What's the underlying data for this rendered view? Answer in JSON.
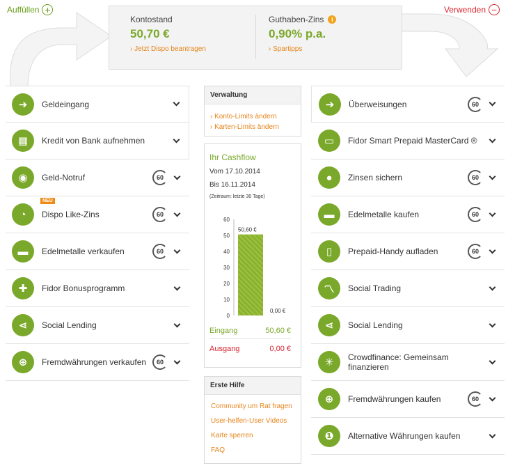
{
  "header": {
    "add_label": "Auffüllen",
    "use_label": "Verwenden"
  },
  "summary": {
    "balance_label": "Kontostand",
    "balance_value": "50,70 €",
    "balance_link": "› Jetzt Dispo beantragen",
    "interest_label": "Guthaben-Zins",
    "interest_value": "0,90% p.a.",
    "interest_link": "› Spartipps"
  },
  "left_items": [
    {
      "label": "Geldeingang",
      "icon": "incoming-arrow-icon",
      "badge": false
    },
    {
      "label": "Kredit von Bank aufnehmen",
      "icon": "calculator-icon",
      "badge": false
    },
    {
      "label": "Geld-Notruf",
      "icon": "alarm-icon",
      "badge": true
    },
    {
      "label": "Dispo Like-Zins",
      "icon": "speedometer-icon",
      "badge": true,
      "tag": "NEU"
    },
    {
      "label": "Edelmetalle verkaufen",
      "icon": "gold-bars-icon",
      "badge": true
    },
    {
      "label": "Fidor Bonusprogramm",
      "icon": "gift-icon",
      "badge": false
    },
    {
      "label": "Social Lending",
      "icon": "share-icon",
      "badge": false
    },
    {
      "label": "Fremdwährungen verkaufen",
      "icon": "globe-icon",
      "badge": true
    }
  ],
  "right_items": [
    {
      "label": "Überweisungen",
      "icon": "transfer-icon",
      "badge": true
    },
    {
      "label": "Fidor Smart Prepaid MasterCard ®",
      "icon": "card-icon",
      "badge": false
    },
    {
      "label": "Zinsen sichern",
      "icon": "piggy-bank-icon",
      "badge": true
    },
    {
      "label": "Edelmetalle kaufen",
      "icon": "gold-bars-icon",
      "badge": true
    },
    {
      "label": "Prepaid-Handy aufladen",
      "icon": "phone-icon",
      "badge": true
    },
    {
      "label": "Social Trading",
      "icon": "chart-icon",
      "badge": false
    },
    {
      "label": "Social Lending",
      "icon": "share-icon",
      "badge": false
    },
    {
      "label": "Crowdfinance: Gemeinsam finanzieren",
      "icon": "network-icon",
      "badge": false
    },
    {
      "label": "Fremdwährungen kaufen",
      "icon": "globe-icon",
      "badge": true
    },
    {
      "label": "Alternative Währungen kaufen",
      "icon": "coin-icon",
      "badge": false
    }
  ],
  "badge_text": "60",
  "verwaltung": {
    "title": "Verwaltung",
    "links": [
      "› Konto-Limits ändern",
      "› Karten-Limits ändern"
    ]
  },
  "cashflow": {
    "title": "Ihr Cashflow",
    "from": "Vom 17.10.2014",
    "to": "Bis 16.11.2014",
    "range": "(Zeitraum: letzte 30 Tage)",
    "in_label": "Eingang",
    "in_value": "50,60 €",
    "out_label": "Ausgang",
    "out_value": "0,00 €"
  },
  "chart_data": {
    "type": "bar",
    "categories": [
      "Eingang",
      "Ausgang"
    ],
    "values": [
      50.6,
      0
    ],
    "data_labels": [
      "50,60 €",
      "0,00 €"
    ],
    "yticks": [
      0,
      10,
      20,
      30,
      40,
      50,
      60
    ],
    "ylim": [
      0,
      60
    ],
    "colors": {
      "in": "#8bb32e"
    }
  },
  "erste_hilfe": {
    "title": "Erste Hilfe",
    "links": [
      "Community um Rat fragen",
      "User-helfen-User Videos",
      "Karte sperren",
      "FAQ"
    ]
  }
}
